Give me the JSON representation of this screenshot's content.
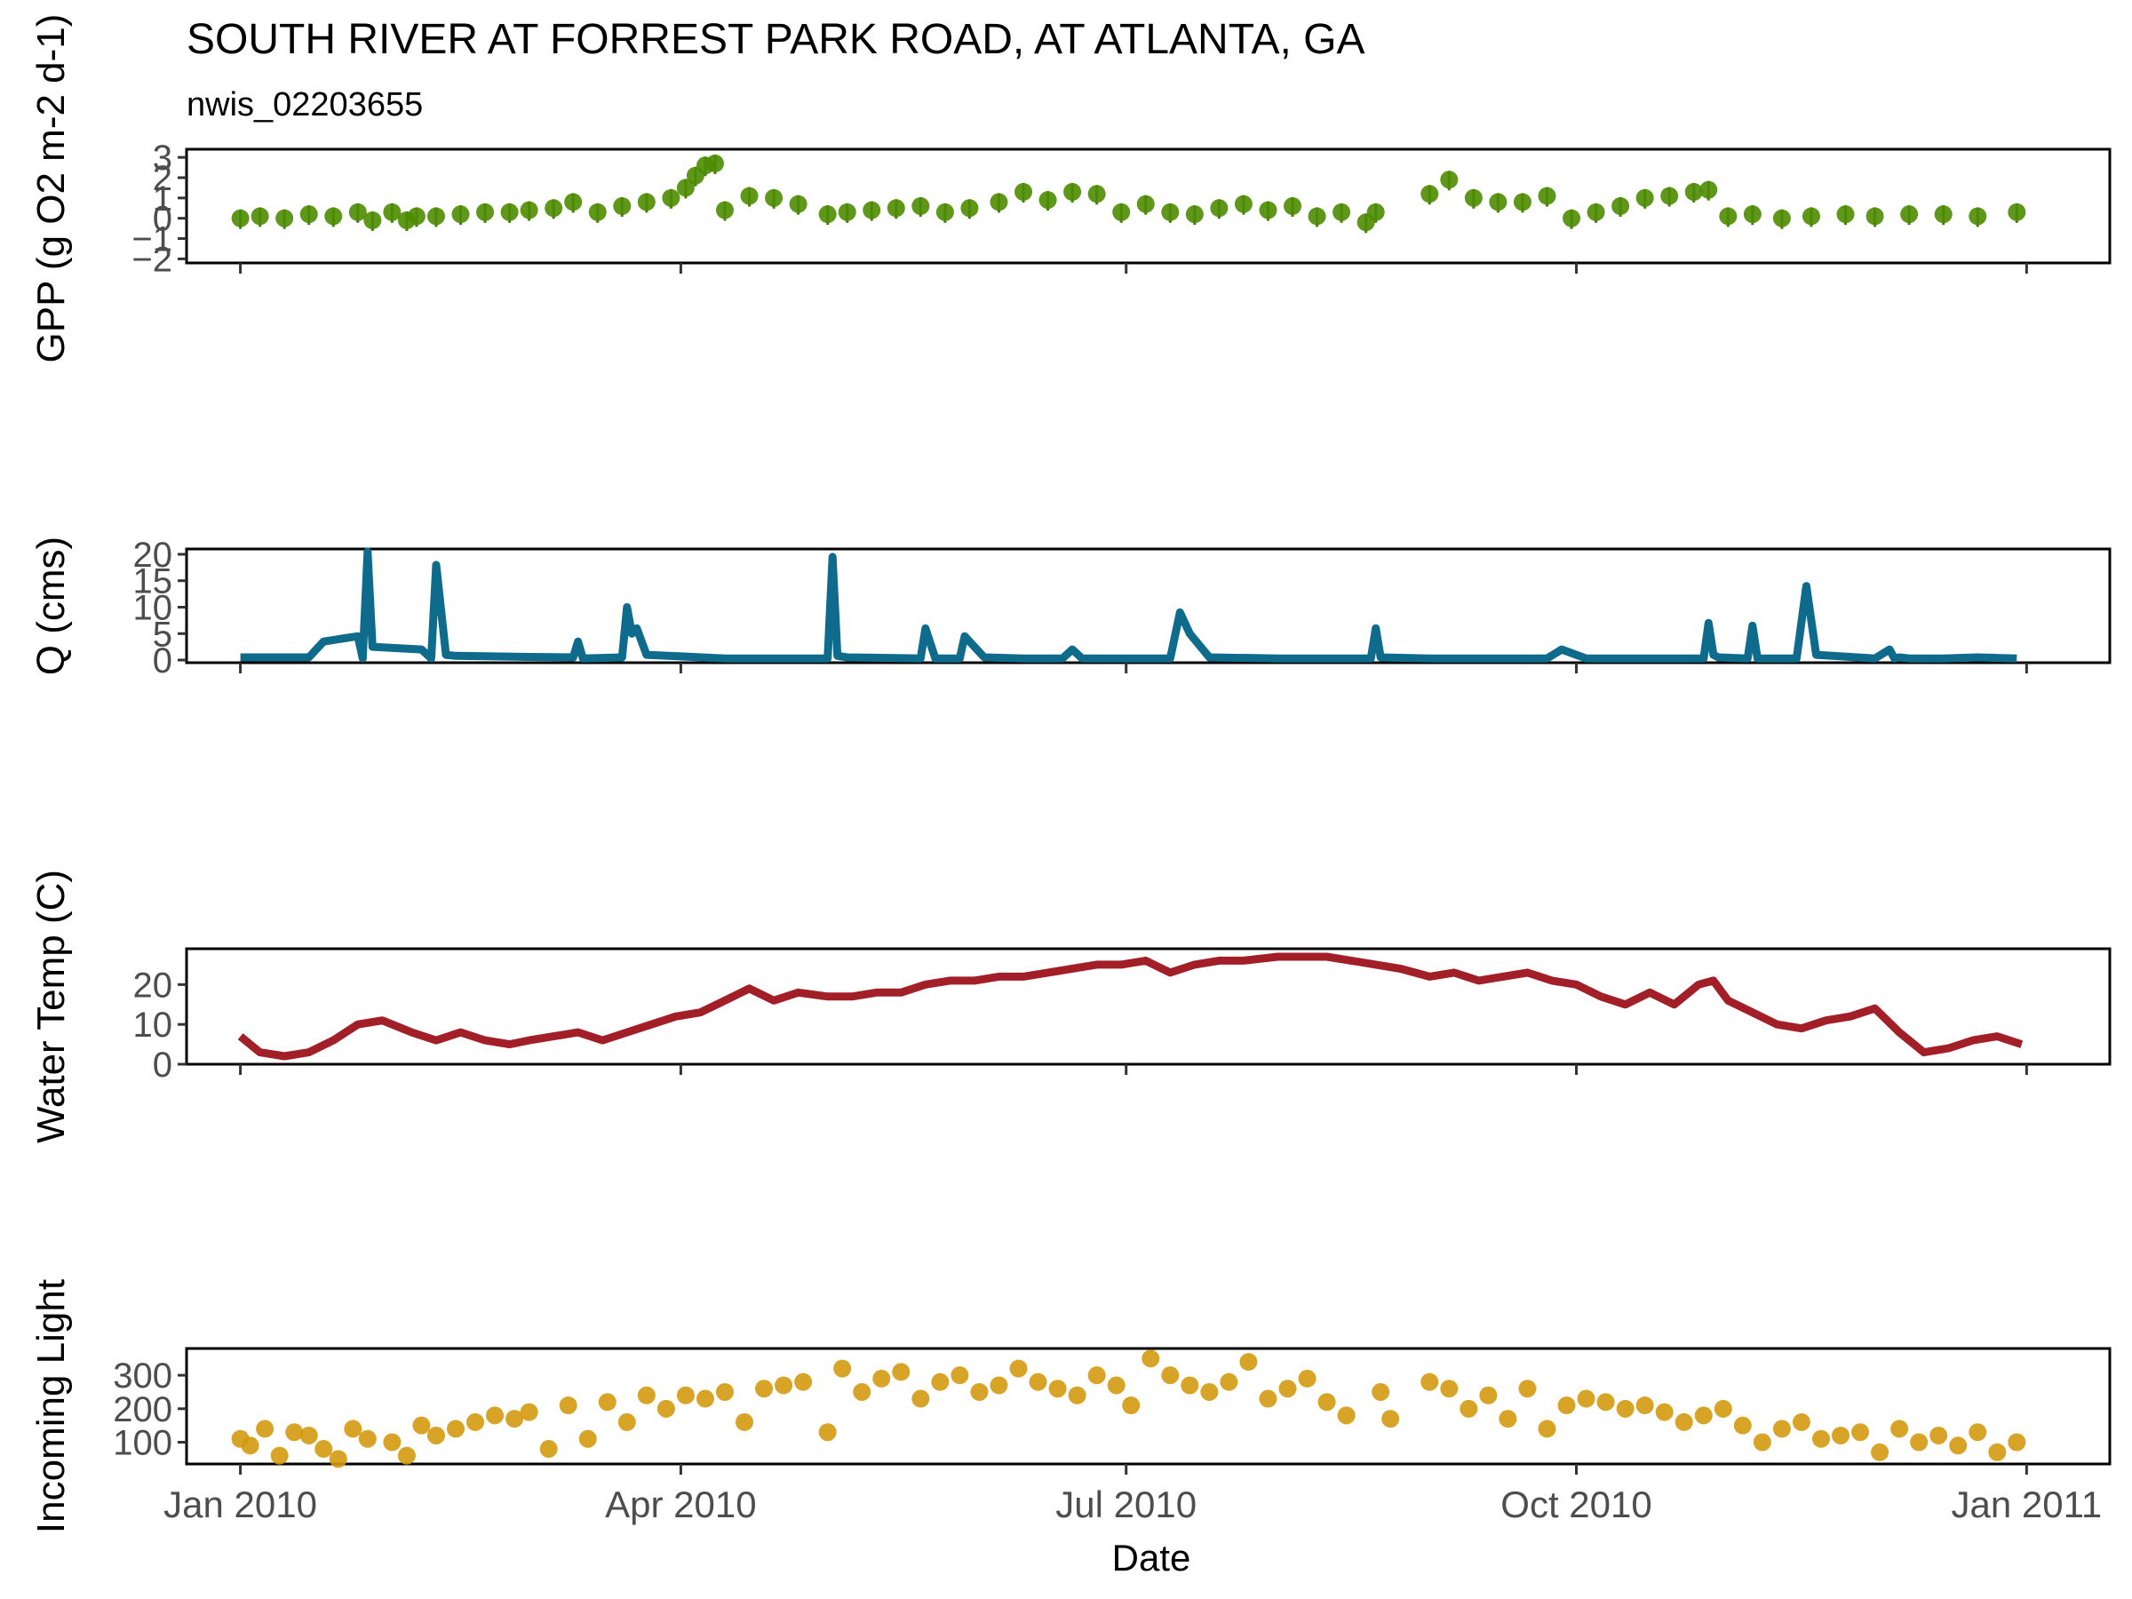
{
  "title": "SOUTH RIVER AT FORREST PARK ROAD, AT ATLANTA, GA",
  "subtitle": "nwis_02203655",
  "xlabel": "Date",
  "x_ticks": [
    {
      "date": "2010-01-01",
      "label": "Jan 2010"
    },
    {
      "date": "2010-04-01",
      "label": "Apr 2010"
    },
    {
      "date": "2010-07-01",
      "label": "Jul 2010"
    },
    {
      "date": "2010-10-01",
      "label": "Oct 2010"
    },
    {
      "date": "2011-01-01",
      "label": "Jan 2011"
    }
  ],
  "xlim": [
    "2009-12-21",
    "2011-01-18"
  ],
  "chart_data": [
    {
      "type": "scatter",
      "ylabel": "GPP (g O2 m-2 d-1)",
      "color": "#4d8c00",
      "ylim": [
        -2.2,
        3.4
      ],
      "y_ticks": [
        -2,
        -1,
        0,
        1,
        2,
        3
      ],
      "error_bars": true,
      "series": [
        {
          "x": [
            "2010-01-01",
            "2010-01-05",
            "2010-01-10",
            "2010-01-15",
            "2010-01-20",
            "2010-01-25",
            "2010-01-28",
            "2010-02-01",
            "2010-02-04",
            "2010-02-06",
            "2010-02-10",
            "2010-02-15",
            "2010-02-20",
            "2010-02-25",
            "2010-03-01",
            "2010-03-06",
            "2010-03-10",
            "2010-03-15",
            "2010-03-20",
            "2010-03-25",
            "2010-03-30",
            "2010-04-02",
            "2010-04-04",
            "2010-04-06",
            "2010-04-08",
            "2010-04-10",
            "2010-04-15",
            "2010-04-20",
            "2010-04-25",
            "2010-05-01",
            "2010-05-05",
            "2010-05-10",
            "2010-05-15",
            "2010-05-20",
            "2010-05-25",
            "2010-05-30",
            "2010-06-05",
            "2010-06-10",
            "2010-06-15",
            "2010-06-20",
            "2010-06-25",
            "2010-06-30",
            "2010-07-05",
            "2010-07-10",
            "2010-07-15",
            "2010-07-20",
            "2010-07-25",
            "2010-07-30",
            "2010-08-04",
            "2010-08-09",
            "2010-08-14",
            "2010-08-19",
            "2010-08-21",
            "2010-09-01",
            "2010-09-05",
            "2010-09-10",
            "2010-09-15",
            "2010-09-20",
            "2010-09-25",
            "2010-09-30",
            "2010-10-05",
            "2010-10-10",
            "2010-10-15",
            "2010-10-20",
            "2010-10-25",
            "2010-10-28",
            "2010-11-01",
            "2010-11-06",
            "2010-11-12",
            "2010-11-18",
            "2010-11-25",
            "2010-12-01",
            "2010-12-08",
            "2010-12-15",
            "2010-12-22",
            "2010-12-30"
          ],
          "y": [
            0.0,
            0.1,
            0.0,
            0.2,
            0.1,
            0.3,
            -0.1,
            0.3,
            -0.1,
            0.1,
            0.1,
            0.2,
            0.3,
            0.3,
            0.4,
            0.5,
            0.8,
            0.3,
            0.6,
            0.8,
            1.0,
            1.5,
            2.1,
            2.6,
            2.7,
            0.4,
            1.1,
            1.0,
            0.7,
            0.2,
            0.3,
            0.4,
            0.5,
            0.6,
            0.3,
            0.5,
            0.8,
            1.3,
            0.9,
            1.3,
            1.2,
            0.3,
            0.7,
            0.3,
            0.2,
            0.5,
            0.7,
            0.4,
            0.6,
            0.1,
            0.3,
            -0.2,
            0.3,
            1.2,
            1.9,
            1.0,
            0.8,
            0.8,
            1.1,
            0.0,
            0.3,
            0.6,
            1.0,
            1.1,
            1.3,
            1.4,
            0.1,
            0.2,
            0.0,
            0.1,
            0.2,
            0.1,
            0.2,
            0.2,
            0.1,
            0.3
          ]
        }
      ]
    },
    {
      "type": "line",
      "ylabel": "Q (cms)",
      "color": "#0f6b8c",
      "ylim": [
        -0.5,
        21
      ],
      "y_ticks": [
        0,
        5,
        10,
        15,
        20
      ],
      "series": [
        {
          "x": [
            "2010-01-01",
            "2010-01-15",
            "2010-01-18",
            "2010-01-25",
            "2010-01-26",
            "2010-01-27",
            "2010-01-28",
            "2010-02-07",
            "2010-02-09",
            "2010-02-10",
            "2010-02-12",
            "2010-02-14",
            "2010-03-01",
            "2010-03-10",
            "2010-03-11",
            "2010-03-12",
            "2010-03-20",
            "2010-03-21",
            "2010-03-22",
            "2010-03-23",
            "2010-03-25",
            "2010-04-10",
            "2010-05-01",
            "2010-05-02",
            "2010-05-03",
            "2010-05-05",
            "2010-05-20",
            "2010-05-21",
            "2010-05-23",
            "2010-05-28",
            "2010-05-29",
            "2010-06-02",
            "2010-06-10",
            "2010-06-18",
            "2010-06-20",
            "2010-06-22",
            "2010-07-10",
            "2010-07-12",
            "2010-07-14",
            "2010-07-18",
            "2010-08-01",
            "2010-08-10",
            "2010-08-20",
            "2010-08-21",
            "2010-08-22",
            "2010-09-01",
            "2010-09-25",
            "2010-09-28",
            "2010-10-03",
            "2010-10-20",
            "2010-10-27",
            "2010-10-28",
            "2010-10-29",
            "2010-10-30",
            "2010-11-05",
            "2010-11-06",
            "2010-11-07",
            "2010-11-15",
            "2010-11-17",
            "2010-11-19",
            "2010-12-01",
            "2010-12-04",
            "2010-12-05",
            "2010-12-06",
            "2010-12-08",
            "2010-12-15",
            "2010-12-22",
            "2010-12-30"
          ],
          "y": [
            0.5,
            0.5,
            3.5,
            4.5,
            0.3,
            20.5,
            2.5,
            2.0,
            0.3,
            18.0,
            1.0,
            0.8,
            0.6,
            0.5,
            3.5,
            0.3,
            0.5,
            10.0,
            5.0,
            6.0,
            1.0,
            0.3,
            0.3,
            19.5,
            0.8,
            0.5,
            0.3,
            6.0,
            0.3,
            0.3,
            4.5,
            0.5,
            0.3,
            0.3,
            2.0,
            0.3,
            0.3,
            9.0,
            5.0,
            0.5,
            0.3,
            0.3,
            0.3,
            6.0,
            0.5,
            0.3,
            0.3,
            2.0,
            0.3,
            0.3,
            0.3,
            7.0,
            1.0,
            0.5,
            0.3,
            6.5,
            0.3,
            0.3,
            14.0,
            1.0,
            0.3,
            2.0,
            0.3,
            0.5,
            0.3,
            0.3,
            0.5,
            0.3
          ]
        }
      ]
    },
    {
      "type": "line",
      "ylabel": "Water Temp (C)",
      "color": "#a31f28",
      "ylim": [
        0,
        29
      ],
      "y_ticks": [
        0,
        10,
        20
      ],
      "series": [
        {
          "x": [
            "2010-01-01",
            "2010-01-05",
            "2010-01-10",
            "2010-01-15",
            "2010-01-20",
            "2010-01-25",
            "2010-01-30",
            "2010-02-05",
            "2010-02-10",
            "2010-02-15",
            "2010-02-20",
            "2010-02-25",
            "2010-03-01",
            "2010-03-06",
            "2010-03-11",
            "2010-03-16",
            "2010-03-21",
            "2010-03-26",
            "2010-03-31",
            "2010-04-05",
            "2010-04-10",
            "2010-04-15",
            "2010-04-20",
            "2010-04-25",
            "2010-05-01",
            "2010-05-06",
            "2010-05-11",
            "2010-05-16",
            "2010-05-21",
            "2010-05-26",
            "2010-05-31",
            "2010-06-05",
            "2010-06-10",
            "2010-06-15",
            "2010-06-20",
            "2010-06-25",
            "2010-06-30",
            "2010-07-05",
            "2010-07-10",
            "2010-07-15",
            "2010-07-20",
            "2010-07-25",
            "2010-08-01",
            "2010-08-06",
            "2010-08-11",
            "2010-08-16",
            "2010-08-21",
            "2010-08-26",
            "2010-09-01",
            "2010-09-06",
            "2010-09-11",
            "2010-09-16",
            "2010-09-21",
            "2010-09-26",
            "2010-10-01",
            "2010-10-06",
            "2010-10-11",
            "2010-10-16",
            "2010-10-21",
            "2010-10-26",
            "2010-10-29",
            "2010-11-01",
            "2010-11-06",
            "2010-11-11",
            "2010-11-16",
            "2010-11-21",
            "2010-11-26",
            "2010-12-01",
            "2010-12-06",
            "2010-12-11",
            "2010-12-16",
            "2010-12-21",
            "2010-12-26",
            "2010-12-31"
          ],
          "y": [
            7,
            3,
            2,
            3,
            6,
            10,
            11,
            8,
            6,
            8,
            6,
            5,
            6,
            7,
            8,
            6,
            8,
            10,
            12,
            13,
            16,
            19,
            16,
            18,
            17,
            17,
            18,
            18,
            20,
            21,
            21,
            22,
            22,
            23,
            24,
            25,
            25,
            26,
            23,
            25,
            26,
            26,
            27,
            27,
            27,
            26,
            25,
            24,
            22,
            23,
            21,
            22,
            23,
            21,
            20,
            17,
            15,
            18,
            15,
            20,
            21,
            16,
            13,
            10,
            9,
            11,
            12,
            14,
            8,
            3,
            4,
            6,
            7,
            5
          ]
        }
      ]
    },
    {
      "type": "scatter",
      "ylabel": "Incoming Light",
      "color": "#d49a0f",
      "ylim": [
        35,
        380
      ],
      "y_ticks": [
        100,
        200,
        300
      ],
      "series": [
        {
          "x": [
            "2010-01-01",
            "2010-01-03",
            "2010-01-06",
            "2010-01-09",
            "2010-01-12",
            "2010-01-15",
            "2010-01-18",
            "2010-01-21",
            "2010-01-24",
            "2010-01-27",
            "2010-02-01",
            "2010-02-04",
            "2010-02-07",
            "2010-02-10",
            "2010-02-14",
            "2010-02-18",
            "2010-02-22",
            "2010-02-26",
            "2010-03-01",
            "2010-03-05",
            "2010-03-09",
            "2010-03-13",
            "2010-03-17",
            "2010-03-21",
            "2010-03-25",
            "2010-03-29",
            "2010-04-02",
            "2010-04-06",
            "2010-04-10",
            "2010-04-14",
            "2010-04-18",
            "2010-04-22",
            "2010-04-26",
            "2010-05-01",
            "2010-05-04",
            "2010-05-08",
            "2010-05-12",
            "2010-05-16",
            "2010-05-20",
            "2010-05-24",
            "2010-05-28",
            "2010-06-01",
            "2010-06-05",
            "2010-06-09",
            "2010-06-13",
            "2010-06-17",
            "2010-06-21",
            "2010-06-25",
            "2010-06-29",
            "2010-07-02",
            "2010-07-06",
            "2010-07-10",
            "2010-07-14",
            "2010-07-18",
            "2010-07-22",
            "2010-07-26",
            "2010-07-30",
            "2010-08-03",
            "2010-08-07",
            "2010-08-11",
            "2010-08-15",
            "2010-08-22",
            "2010-08-24",
            "2010-09-01",
            "2010-09-05",
            "2010-09-09",
            "2010-09-13",
            "2010-09-17",
            "2010-09-21",
            "2010-09-25",
            "2010-09-29",
            "2010-10-03",
            "2010-10-07",
            "2010-10-11",
            "2010-10-15",
            "2010-10-19",
            "2010-10-23",
            "2010-10-27",
            "2010-10-31",
            "2010-11-04",
            "2010-11-08",
            "2010-11-12",
            "2010-11-16",
            "2010-11-20",
            "2010-11-24",
            "2010-11-28",
            "2010-12-02",
            "2010-12-06",
            "2010-12-10",
            "2010-12-14",
            "2010-12-18",
            "2010-12-22",
            "2010-12-26",
            "2010-12-30"
          ],
          "y": [
            110,
            90,
            140,
            60,
            130,
            120,
            80,
            50,
            140,
            110,
            100,
            60,
            150,
            120,
            140,
            160,
            180,
            170,
            190,
            80,
            210,
            110,
            220,
            160,
            240,
            200,
            240,
            230,
            250,
            160,
            260,
            270,
            280,
            130,
            320,
            250,
            290,
            310,
            230,
            280,
            300,
            250,
            270,
            320,
            280,
            260,
            240,
            300,
            270,
            210,
            350,
            300,
            270,
            250,
            280,
            340,
            230,
            260,
            290,
            220,
            180,
            250,
            170,
            280,
            260,
            200,
            240,
            170,
            260,
            140,
            210,
            230,
            220,
            200,
            210,
            190,
            160,
            180,
            200,
            150,
            100,
            140,
            160,
            110,
            120,
            130,
            70,
            140,
            100,
            120,
            90,
            130,
            70,
            100
          ]
        }
      ]
    }
  ]
}
